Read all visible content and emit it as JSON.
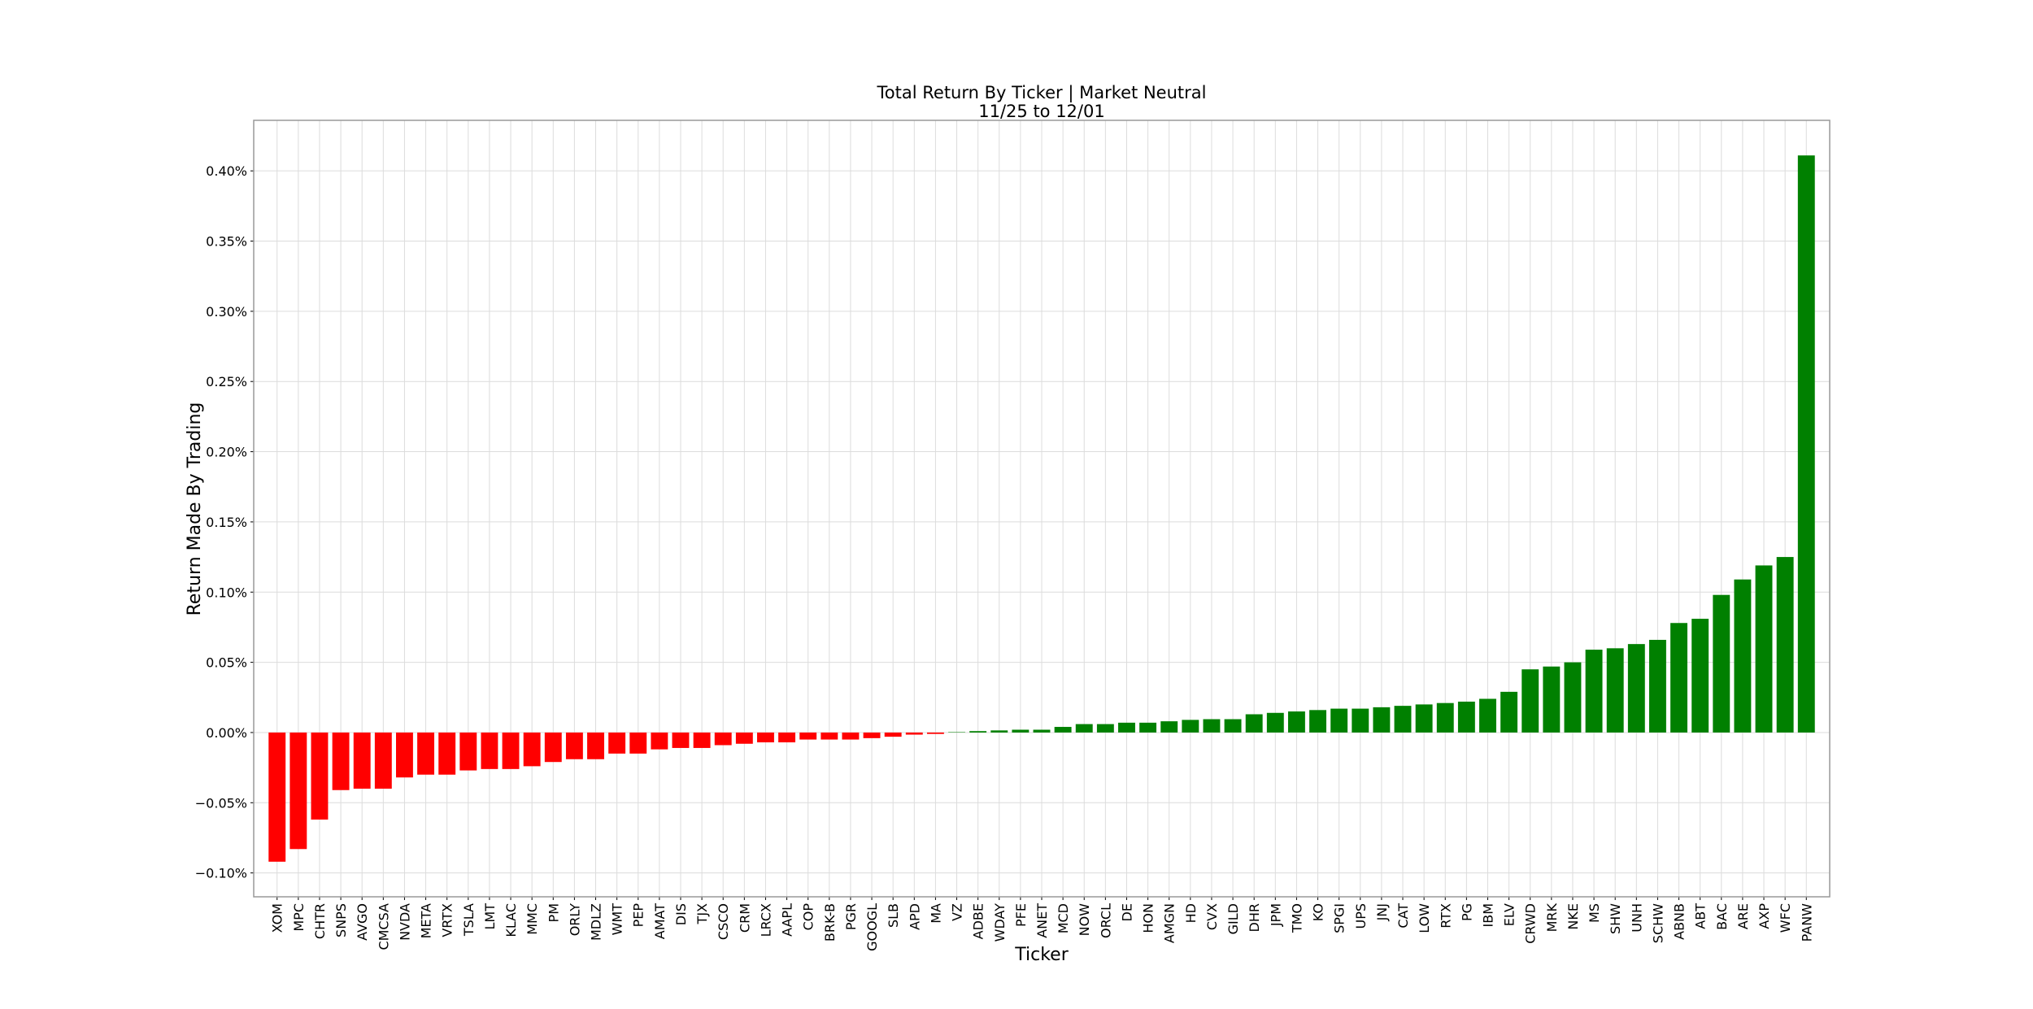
{
  "chart_data": {
    "type": "bar",
    "title": "Total Return By Ticker | Market Neutral",
    "subtitle": "11/25 to 12/01",
    "x_label": "Ticker",
    "y_label": "Return Made By Trading",
    "categories": [
      "XOM",
      "MPC",
      "CHTR",
      "SNPS",
      "AVGO",
      "CMCSA",
      "NVDA",
      "META",
      "VRTX",
      "TSLA",
      "LMT",
      "KLAC",
      "MMC",
      "PM",
      "ORLY",
      "MDLZ",
      "WMT",
      "PEP",
      "AMAT",
      "DIS",
      "TJX",
      "CSCO",
      "CRM",
      "LRCX",
      "AAPL",
      "COP",
      "BRK-B",
      "PGR",
      "GOOGL",
      "SLB",
      "APD",
      "MA",
      "VZ",
      "ADBE",
      "WDAY",
      "PFE",
      "ANET",
      "MCD",
      "NOW",
      "ORCL",
      "DE",
      "HON",
      "AMGN",
      "HD",
      "CVX",
      "GILD",
      "DHR",
      "JPM",
      "TMO",
      "KO",
      "SPGI",
      "UPS",
      "JNJ",
      "CAT",
      "LOW",
      "RTX",
      "PG",
      "IBM",
      "ELV",
      "CRWD",
      "MRK",
      "NKE",
      "MS",
      "SHW",
      "UNH",
      "SCHW",
      "ABNB",
      "ABT",
      "BAC",
      "ARE",
      "AXP",
      "WFC",
      "PANW"
    ],
    "values": [
      -0.092,
      -0.083,
      -0.062,
      -0.041,
      -0.04,
      -0.04,
      -0.032,
      -0.03,
      -0.03,
      -0.027,
      -0.026,
      -0.026,
      -0.024,
      -0.021,
      -0.019,
      -0.019,
      -0.015,
      -0.015,
      -0.012,
      -0.011,
      -0.011,
      -0.009,
      -0.008,
      -0.007,
      -0.007,
      -0.005,
      -0.005,
      -0.005,
      -0.004,
      -0.003,
      -0.0015,
      -0.001,
      0.0003,
      0.001,
      0.0015,
      0.002,
      0.002,
      0.004,
      0.006,
      0.006,
      0.007,
      0.007,
      0.008,
      0.009,
      0.0095,
      0.0095,
      0.013,
      0.014,
      0.015,
      0.016,
      0.017,
      0.017,
      0.018,
      0.019,
      0.02,
      0.021,
      0.022,
      0.024,
      0.029,
      0.045,
      0.047,
      0.05,
      0.059,
      0.06,
      0.063,
      0.066,
      0.078,
      0.081,
      0.098,
      0.109,
      0.119,
      0.125,
      0.411
    ],
    "positive_color": "green",
    "negative_color": "red",
    "ylim": [
      -0.117,
      0.436
    ],
    "yticks": [
      {
        "value": -0.1,
        "label": "−0.10%"
      },
      {
        "value": -0.05,
        "label": "−0.05%"
      },
      {
        "value": 0,
        "label": "0.00%"
      },
      {
        "value": 0.05,
        "label": "0.05%"
      },
      {
        "value": 0.1,
        "label": "0.10%"
      },
      {
        "value": 0.15,
        "label": "0.15%"
      },
      {
        "value": 0.2,
        "label": "0.20%"
      },
      {
        "value": 0.25,
        "label": "0.25%"
      },
      {
        "value": 0.3,
        "label": "0.30%"
      },
      {
        "value": 0.35,
        "label": "0.35%"
      },
      {
        "value": 0.4,
        "label": "0.40%"
      }
    ],
    "grid": true
  }
}
